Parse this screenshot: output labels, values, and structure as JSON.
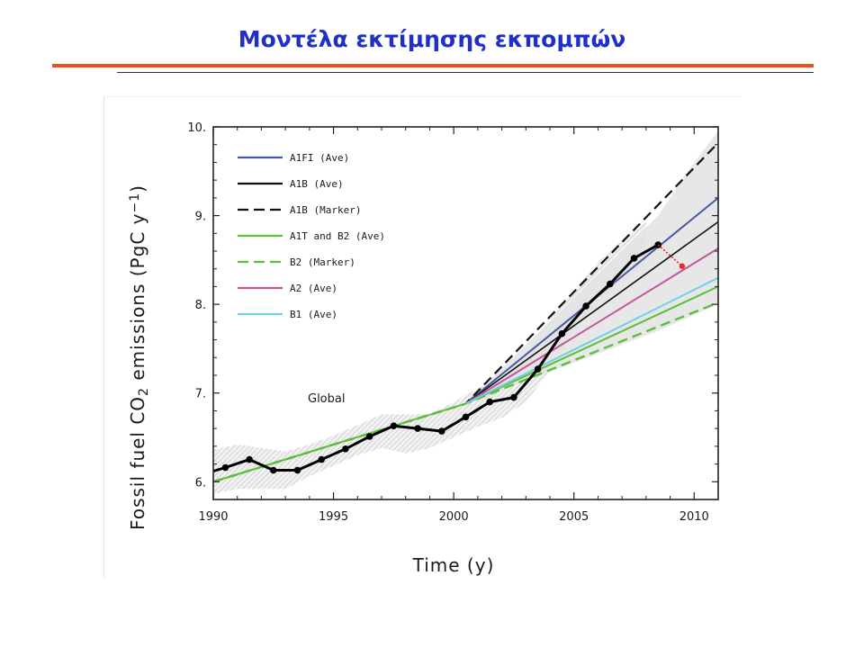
{
  "slide": {
    "title": "Μοντέλα εκτίμησης εκπομπών"
  },
  "colors": {
    "title": "#1f2fc8",
    "rule": "#e8501e",
    "A1FI": "#4458a8",
    "A1B": "#111111",
    "A1T_B2": "#5cbf3a",
    "A2": "#c2569a",
    "B1": "#6ed0e0",
    "observed": "#000000",
    "arrow": "#e03020"
  },
  "chart_data": {
    "type": "line",
    "title": "",
    "xlabel": "Time (y)",
    "ylabel": "Fossil fuel CO2 emissions (PgC y-1)",
    "ylabel_parts": [
      "Fossil fuel CO",
      "2",
      " emissions (PgC y",
      "−1",
      ")"
    ],
    "xlim": [
      1990,
      2011
    ],
    "ylim": [
      5.8,
      10.0
    ],
    "x_ticks": [
      "1990",
      "1995",
      "2000",
      "2005",
      "2010"
    ],
    "y_ticks": [
      "6.",
      "7.",
      "8.",
      "9.",
      "10."
    ],
    "grid": false,
    "legend_position": "top-left",
    "annotation": "Global",
    "legend": [
      {
        "label": "A1FI (Ave)",
        "color": "#4458a8",
        "dash": "solid"
      },
      {
        "label": "A1B (Ave)",
        "color": "#111111",
        "dash": "solid"
      },
      {
        "label": "A1B (Marker)",
        "color": "#111111",
        "dash": "dashed"
      },
      {
        "label": "A1T and B2 (Ave)",
        "color": "#5cbf3a",
        "dash": "solid"
      },
      {
        "label": "B2 (Marker)",
        "color": "#5cbf3a",
        "dash": "dashed"
      },
      {
        "label": "A2 (Ave)",
        "color": "#c2569a",
        "dash": "solid"
      },
      {
        "label": "B1 (Ave)",
        "color": "#6ed0e0",
        "dash": "solid"
      }
    ],
    "series": [
      {
        "name": "A1FI (Ave)",
        "x": [
          2000.5,
          2011
        ],
        "y": [
          6.88,
          9.2
        ]
      },
      {
        "name": "A1B (Ave)",
        "x": [
          2000.5,
          2011
        ],
        "y": [
          6.88,
          8.93
        ]
      },
      {
        "name": "A1B (Marker)",
        "x": [
          1990,
          2000.5,
          2011
        ],
        "y": [
          6.0,
          6.88,
          9.82
        ]
      },
      {
        "name": "A1T and B2 (Ave)",
        "x": [
          1990,
          2000.5,
          2011
        ],
        "y": [
          6.0,
          6.88,
          8.2
        ]
      },
      {
        "name": "B2 (Marker)",
        "x": [
          1990,
          2000.5,
          2011
        ],
        "y": [
          6.0,
          6.88,
          8.02
        ]
      },
      {
        "name": "A2 (Ave)",
        "x": [
          2000.5,
          2011
        ],
        "y": [
          6.88,
          8.63
        ]
      },
      {
        "name": "B1 (Ave)",
        "x": [
          2000.5,
          2011
        ],
        "y": [
          6.88,
          8.3
        ]
      },
      {
        "name": "Observed",
        "x": [
          1990,
          1990.5,
          1991.5,
          1992.5,
          1993.5,
          1994.5,
          1995.5,
          1996.5,
          1997.5,
          1998.5,
          1999.5,
          2000.5,
          2001.5,
          2002.5,
          2003.5,
          2004.5,
          2005.5,
          2006.5,
          2007.5,
          2008.5
        ],
        "y": [
          6.12,
          6.16,
          6.25,
          6.13,
          6.13,
          6.25,
          6.37,
          6.51,
          6.63,
          6.6,
          6.57,
          6.73,
          6.9,
          6.95,
          7.27,
          7.67,
          7.98,
          8.23,
          8.52,
          8.67
        ]
      }
    ],
    "arrow": {
      "from": [
        2008.5,
        8.67
      ],
      "to": [
        2009.5,
        8.43
      ]
    }
  }
}
